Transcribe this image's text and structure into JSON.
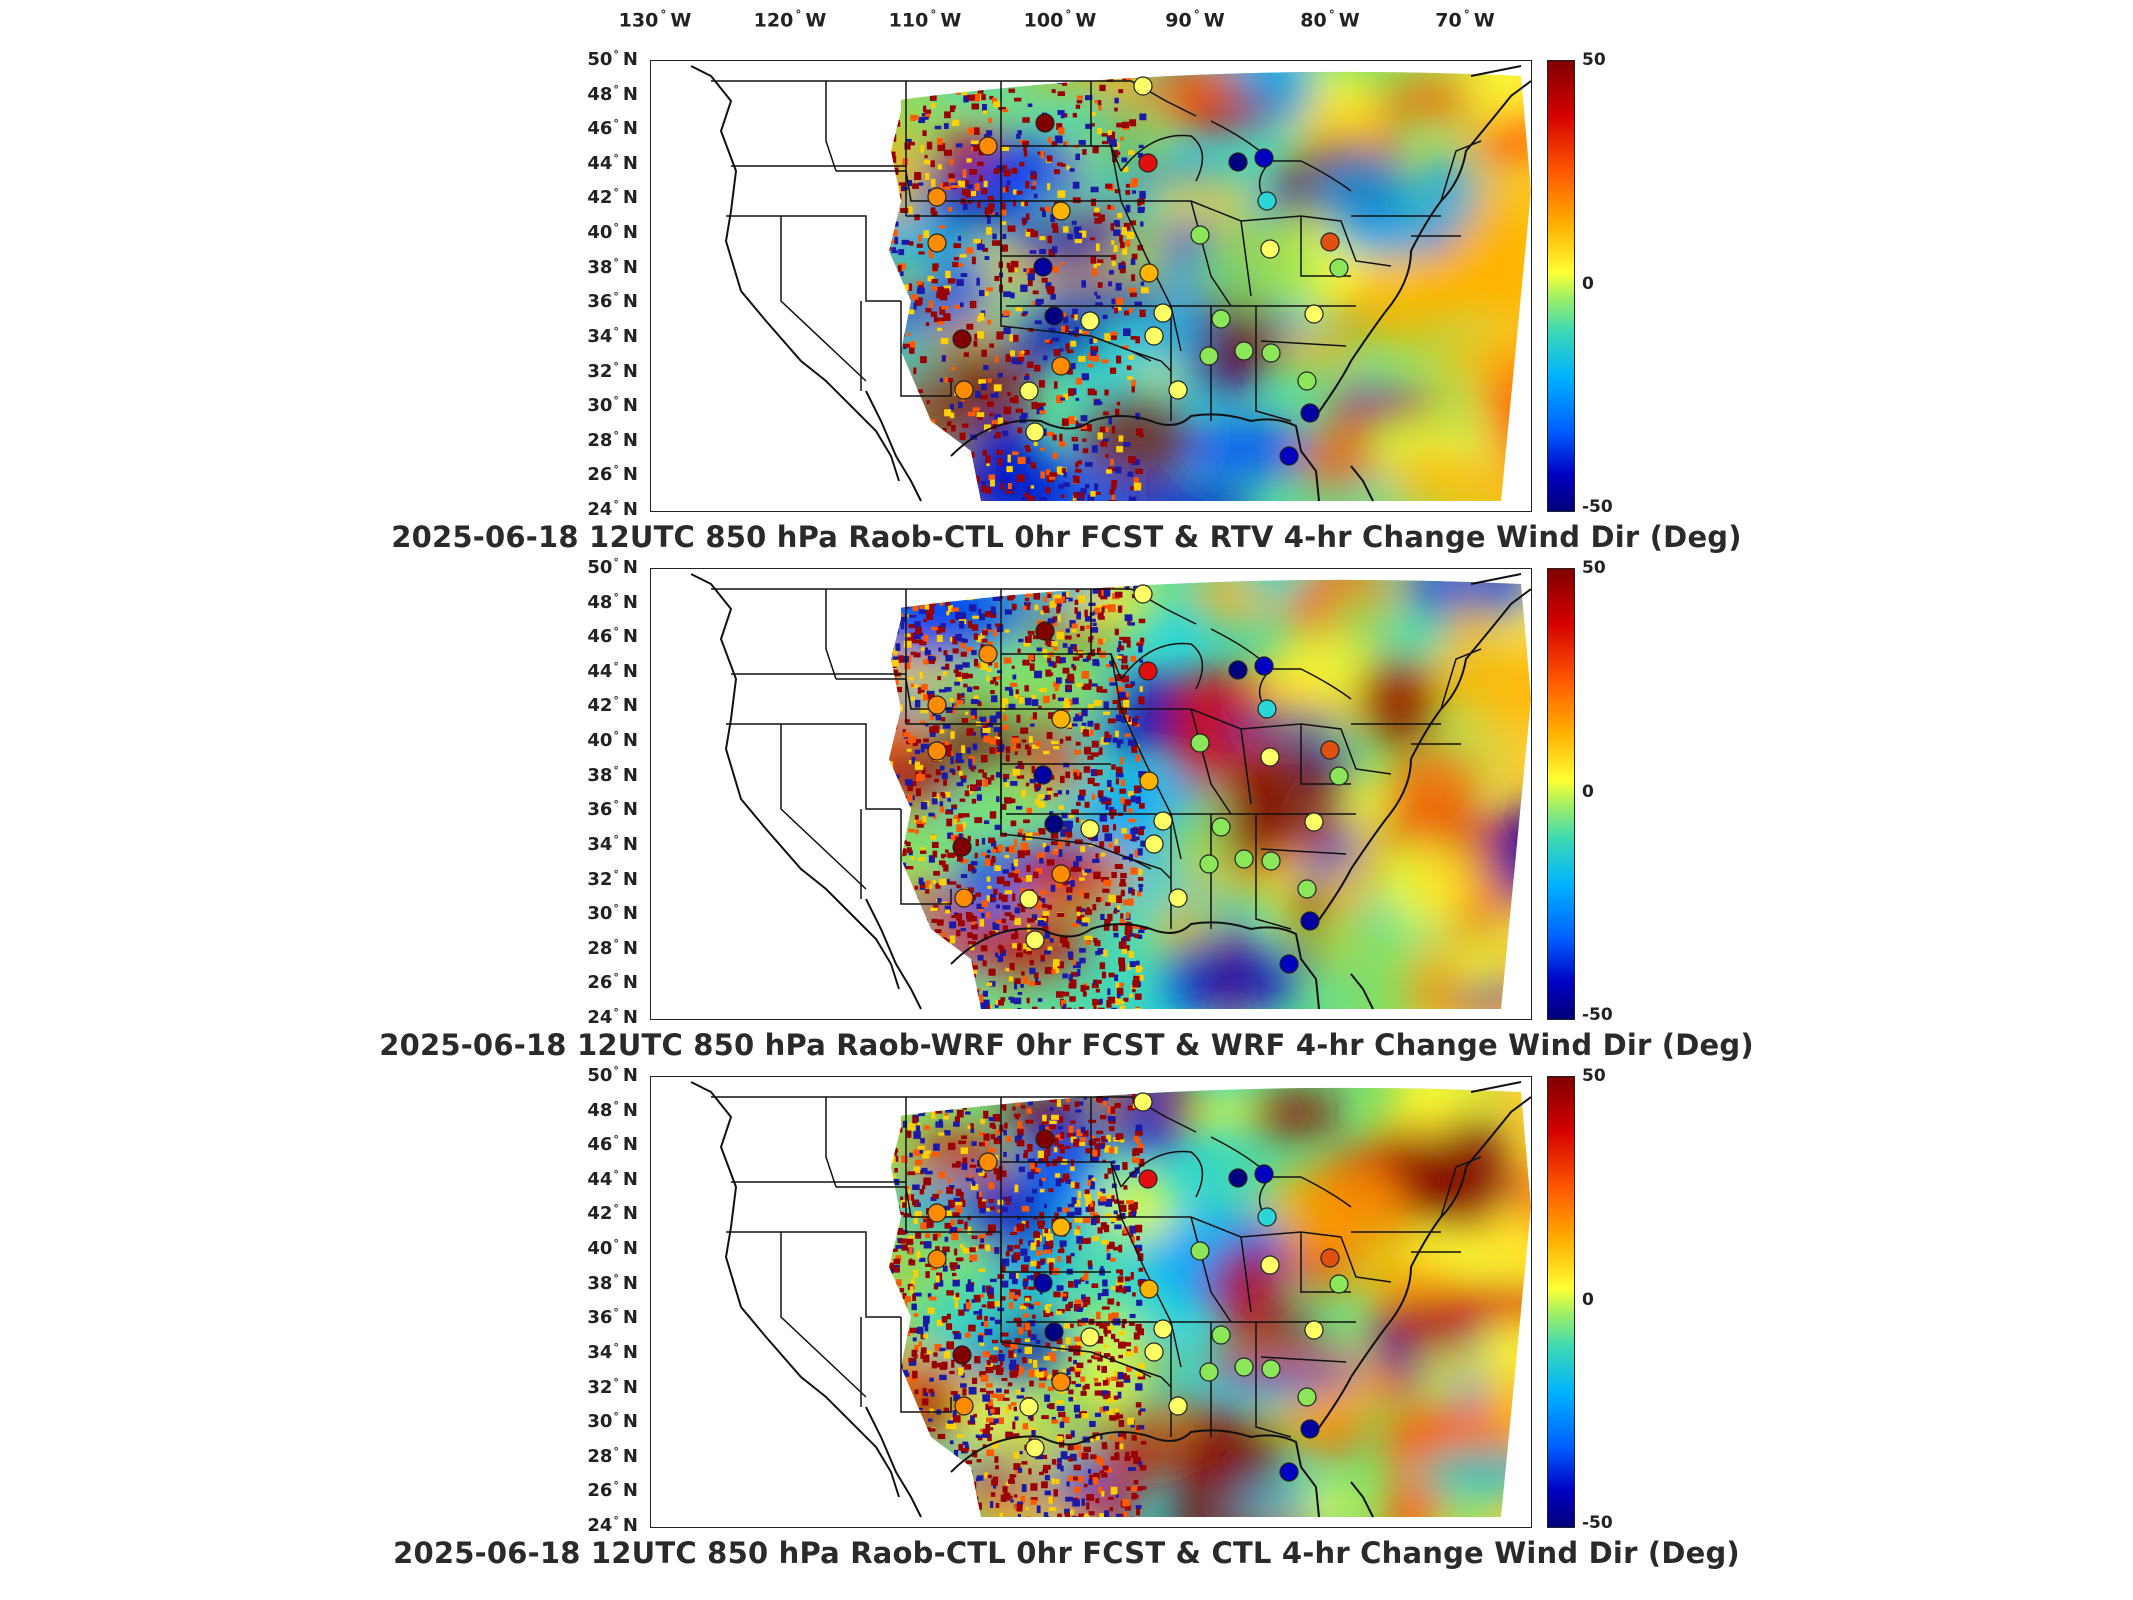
{
  "longitude_labels": [
    "130",
    "120",
    "110",
    "100",
    "90",
    "80",
    "70"
  ],
  "longitude_suffix": "W",
  "latitude_labels": [
    "50",
    "48",
    "46",
    "44",
    "42",
    "40",
    "38",
    "36",
    "34",
    "32",
    "30",
    "28",
    "26",
    "24"
  ],
  "latitude_suffix": "N",
  "colorbar": {
    "max": "50",
    "mid": "0",
    "min": "-50"
  },
  "panels": [
    {
      "title": "2025-06-18 12UTC 850 hPa Raob-CTL 0hr FCST & RTV 4-hr Change Wind Dir (Deg)"
    },
    {
      "title": "2025-06-18 12UTC 850 hPa Raob-WRF 0hr FCST & WRF 4-hr Change Wind Dir (Deg)"
    },
    {
      "title": "2025-06-18 12UTC 850 hPa Raob-CTL 0hr FCST & CTL 4-hr Change Wind Dir (Deg)"
    }
  ],
  "colors": {
    "dark_red": "#800000",
    "red": "#e01010",
    "orange": "#ff8c00",
    "yellow": "#ffff33",
    "green": "#8ce65a",
    "cyan": "#2ad6d6",
    "blue": "#0050ff",
    "dark_blue": "#00007a"
  }
}
